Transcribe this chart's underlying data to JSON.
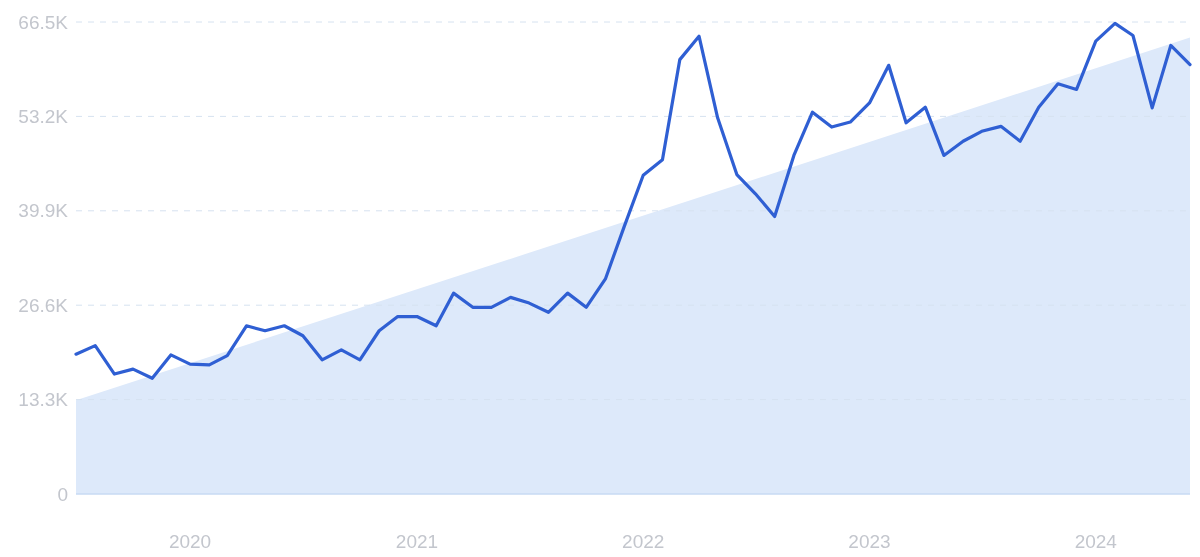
{
  "chart_data": {
    "type": "line",
    "x": [
      "2019-07",
      "2019-08",
      "2019-09",
      "2019-10",
      "2019-11",
      "2019-12",
      "2020-01",
      "2020-02",
      "2020-03",
      "2020-04",
      "2020-05",
      "2020-06",
      "2020-07",
      "2020-08",
      "2020-09",
      "2020-10",
      "2020-11",
      "2020-12",
      "2021-01",
      "2021-02",
      "2021-03",
      "2021-04",
      "2021-05",
      "2021-06",
      "2021-07",
      "2021-08",
      "2021-09",
      "2021-10",
      "2021-11",
      "2021-12",
      "2022-01",
      "2022-02",
      "2022-03",
      "2022-04",
      "2022-05",
      "2022-06",
      "2022-07",
      "2022-08",
      "2022-09",
      "2022-10",
      "2022-11",
      "2022-12",
      "2023-01",
      "2023-02",
      "2023-03",
      "2023-04",
      "2023-05",
      "2023-06",
      "2023-07",
      "2023-08",
      "2023-09",
      "2023-10",
      "2023-11",
      "2023-12",
      "2024-01",
      "2024-02",
      "2024-03",
      "2024-04",
      "2024-05",
      "2024-06"
    ],
    "series": [
      {
        "type": "area",
        "color": "#dde9fa",
        "x": [
          "2019-07",
          "2024-06"
        ],
        "values": [
          13200,
          64300
        ]
      },
      {
        "color": "#2f5fd3",
        "values": [
          19700,
          20900,
          16900,
          17600,
          16300,
          19600,
          18300,
          18200,
          19500,
          23700,
          23000,
          23700,
          22300,
          18900,
          20300,
          18900,
          23000,
          25000,
          25000,
          23700,
          28300,
          26300,
          26300,
          27700,
          26900,
          25600,
          28300,
          26300,
          30300,
          37600,
          44900,
          47100,
          61200,
          64500,
          53000,
          45000,
          42300,
          39100,
          47700,
          53800,
          51700,
          52400,
          55100,
          60400,
          52300,
          54500,
          47700,
          49700,
          51100,
          51800,
          49700,
          54500,
          57800,
          57000,
          63800,
          66300,
          64600,
          54400,
          63200,
          60500
        ]
      }
    ],
    "xlim": [
      "2019-07",
      "2024-06"
    ],
    "xticks": [
      {
        "value": "2020-01",
        "label": "2020"
      },
      {
        "value": "2021-01",
        "label": "2021"
      },
      {
        "value": "2022-01",
        "label": "2022"
      },
      {
        "value": "2023-01",
        "label": "2023"
      },
      {
        "value": "2024-01",
        "label": "2024"
      }
    ],
    "ylim": [
      0,
      66500
    ],
    "yticks": [
      {
        "value": 0,
        "label": "0"
      },
      {
        "value": 13300,
        "label": "13.3K"
      },
      {
        "value": 26600,
        "label": "26.6K"
      },
      {
        "value": 39900,
        "label": "39.9K"
      },
      {
        "value": 53200,
        "label": "53.2K"
      },
      {
        "value": 66500,
        "label": "66.5K"
      }
    ],
    "grid": "y",
    "line_style": "solid",
    "marker": "none"
  }
}
